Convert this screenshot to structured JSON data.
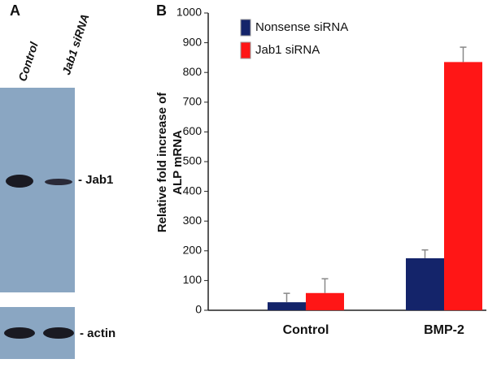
{
  "panel_a": {
    "label": "A",
    "lanes": [
      "Control",
      "Jab1 siRNA"
    ],
    "bands": [
      "- Jab1",
      "- actin"
    ]
  },
  "chart_data": {
    "type": "bar",
    "panel_label": "B",
    "ylabel": [
      "Relative fold increase of",
      "ALP mRNA"
    ],
    "categories": [
      "Control",
      "BMP-2"
    ],
    "series": [
      {
        "name": "Nonsense siRNA",
        "color": "#14246a",
        "values": [
          27,
          175
        ],
        "errors": [
          30,
          28
        ]
      },
      {
        "name": "Jab1 siRNA",
        "color": "#ff1616",
        "values": [
          58,
          835
        ],
        "errors": [
          48,
          50
        ]
      }
    ],
    "ylim": [
      0,
      1000
    ],
    "yticks": [
      0,
      100,
      200,
      300,
      400,
      500,
      600,
      700,
      800,
      900,
      1000
    ],
    "legend": "upper left"
  }
}
